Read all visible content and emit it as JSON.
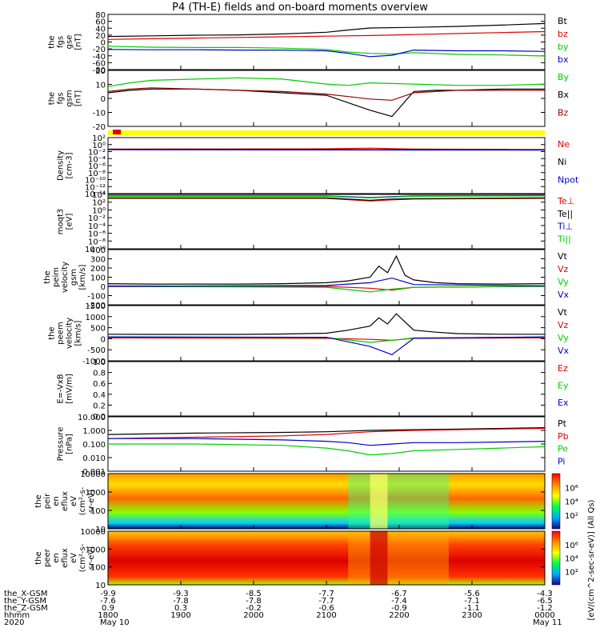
{
  "chart_data": {
    "title": "P4 (TH-E) fields and on-board moments overview",
    "type": "multi-panel time series",
    "x_axis": {
      "label": "hhmm",
      "year": "2020",
      "tick_labels_hhmm": [
        "1800",
        "1900",
        "2000",
        "2100",
        "2200",
        "2300",
        "0000"
      ],
      "date_labels": [
        "May 10",
        "May 11"
      ],
      "position_rows": [
        {
          "label": "the_X-GSM",
          "values": [
            "-9.9",
            "-9.3",
            "-8.5",
            "-7.7",
            "-6.7",
            "-5.6",
            "-4.3"
          ]
        },
        {
          "label": "the_Y-GSM",
          "values": [
            "-7.6",
            "-7.8",
            "-7.8",
            "-7.7",
            "-7.4",
            "-7.1",
            "-6.5"
          ]
        },
        {
          "label": "the_Z-GSM",
          "values": [
            "0.9",
            "0.3",
            "-0.2",
            "-0.6",
            "-0.9",
            "-1.1",
            "-1.2"
          ]
        }
      ]
    },
    "panels": [
      {
        "id": "fgs-gse",
        "ylabel_lines": [
          "the",
          "fgs",
          "gse",
          "[nT]"
        ],
        "yticks": [
          "80",
          "60",
          "40",
          "20",
          "0",
          "-20",
          "-40",
          "-60",
          "-80"
        ],
        "ylim": [
          -80,
          90
        ],
        "series": [
          {
            "name": "Bt",
            "color": "#000000",
            "x": [
              0,
              0.1,
              0.2,
              0.3,
              0.4,
              0.5,
              0.55,
              0.6,
              0.7,
              0.8,
              0.9,
              1.0
            ],
            "y": [
              22,
              24,
              26,
              27,
              30,
              35,
              42,
              48,
              50,
              53,
              57,
              62
            ]
          },
          {
            "name": "bz",
            "color": "#e00000",
            "x": [
              0,
              0.1,
              0.2,
              0.3,
              0.4,
              0.5,
              0.6,
              0.7,
              0.8,
              0.9,
              1.0
            ],
            "y": [
              13,
              15,
              17,
              19,
              21,
              23,
              25,
              28,
              31,
              34,
              37
            ]
          },
          {
            "name": "by",
            "color": "#00cc00",
            "x": [
              0,
              0.1,
              0.2,
              0.3,
              0.4,
              0.5,
              0.55,
              0.6,
              0.65,
              0.7,
              0.8,
              0.9,
              1.0
            ],
            "y": [
              -8,
              -11,
              -12,
              -12,
              -14,
              -18,
              -26,
              -30,
              -32,
              -28,
              -33,
              -35,
              -38
            ]
          },
          {
            "name": "bx",
            "color": "#0000cc",
            "x": [
              0,
              0.1,
              0.2,
              0.3,
              0.4,
              0.5,
              0.55,
              0.6,
              0.65,
              0.7,
              0.8,
              0.9,
              1.0
            ],
            "y": [
              -18,
              -19,
              -19,
              -20,
              -20,
              -22,
              -30,
              -40,
              -36,
              -20,
              -22,
              -22,
              -24
            ]
          }
        ]
      },
      {
        "id": "fgs-gsm",
        "ylabel_lines": [
          "the",
          "fgs",
          "gsm",
          "[nT]"
        ],
        "yticks": [
          "20",
          "10",
          "0",
          "-10",
          "-20"
        ],
        "ylim": [
          -25,
          20
        ],
        "series": [
          {
            "name": "By",
            "color": "#00cc00",
            "x": [
              0,
              0.05,
              0.1,
              0.2,
              0.3,
              0.4,
              0.5,
              0.55,
              0.6,
              0.7,
              0.8,
              0.9,
              1.0
            ],
            "y": [
              7,
              10,
              12,
              13,
              14,
              13,
              9,
              8,
              10,
              9,
              8,
              8,
              9
            ]
          },
          {
            "name": "Bx",
            "color": "#000000",
            "x": [
              0,
              0.05,
              0.1,
              0.2,
              0.3,
              0.4,
              0.5,
              0.55,
              0.6,
              0.65,
              0.7,
              0.75,
              0.8,
              0.9,
              1.0
            ],
            "y": [
              2,
              4,
              5,
              5,
              4,
              2,
              0,
              -6,
              -12,
              -17,
              3,
              4,
              4,
              5,
              5
            ]
          },
          {
            "name": "Bz",
            "color": "#990000",
            "x": [
              0,
              0.05,
              0.1,
              0.2,
              0.3,
              0.4,
              0.5,
              0.55,
              0.6,
              0.65,
              0.7,
              0.75,
              0.8,
              0.9,
              1.0
            ],
            "y": [
              3,
              5,
              6,
              5,
              4,
              3,
              1,
              -1,
              -3,
              -4,
              2,
              3,
              4,
              4,
              4
            ]
          }
        ]
      },
      {
        "id": "density",
        "ylabel_lines": [
          "Density",
          "[cm-3]"
        ],
        "yticks": [
          "10²",
          "10⁰",
          "10⁻²",
          "10⁻⁴",
          "10⁻⁶",
          "10⁻⁸",
          "10⁻¹⁰",
          "10⁻¹²",
          "10⁻¹⁴"
        ],
        "scale": "log",
        "ylim_log10": [
          -14,
          3
        ],
        "series": [
          {
            "name": "Ne",
            "color": "#e00000",
            "x": [
              0,
              0.5,
              0.6,
              0.7,
              1.0
            ],
            "y_log10": [
              -0.5,
              -0.4,
              -0.2,
              -0.5,
              -0.6
            ]
          },
          {
            "name": "Ni",
            "color": "#000000",
            "x": [
              0,
              1.0
            ],
            "y_log10": [
              -0.6,
              -0.7
            ]
          },
          {
            "name": "Npot",
            "color": "#0000cc",
            "x": [
              0,
              1.0
            ],
            "y_log10": [
              -0.7,
              -0.8
            ]
          }
        ]
      },
      {
        "id": "moqt3",
        "ylabel_lines": [
          "moqt3",
          "[eV]"
        ],
        "yticks": [
          "10⁴",
          "10²",
          "10⁰",
          "10⁻²",
          "10⁻⁴",
          "10⁻⁶",
          "10⁻⁸",
          "10⁻¹⁰"
        ],
        "scale": "log",
        "ylim_log10": [
          -10,
          4
        ],
        "series": [
          {
            "name": "Te⊥",
            "color": "#e00000",
            "x": [
              0,
              0.5,
              0.6,
              0.65,
              0.7,
              1.0
            ],
            "y_log10": [
              3.0,
              3.0,
              2.3,
              2.6,
              2.8,
              3.0
            ]
          },
          {
            "name": "Te||",
            "color": "#000000",
            "x": [
              0,
              0.5,
              0.6,
              0.65,
              0.7,
              1.0
            ],
            "y_log10": [
              3.1,
              3.1,
              2.5,
              2.8,
              2.9,
              3.1
            ]
          },
          {
            "name": "Ti⊥",
            "color": "#0000cc",
            "x": [
              0,
              0.5,
              0.6,
              0.65,
              0.7,
              1.0
            ],
            "y_log10": [
              3.6,
              3.6,
              3.2,
              3.4,
              3.6,
              3.7
            ]
          },
          {
            "name": "Ti||",
            "color": "#00cc00",
            "x": [
              0,
              0.5,
              0.6,
              0.65,
              0.7,
              1.0
            ],
            "y_log10": [
              3.5,
              3.5,
              3.1,
              3.3,
              3.5,
              3.6
            ]
          }
        ]
      },
      {
        "id": "peim-velocity",
        "ylabel_lines": [
          "the",
          "peim",
          "velocity",
          "gsm",
          "[km/s]"
        ],
        "yticks": [
          "400",
          "300",
          "200",
          "100",
          "0",
          "-100",
          "-200"
        ],
        "ylim": [
          -200,
          400
        ],
        "series": [
          {
            "name": "Vt",
            "color": "#000000",
            "x": [
              0,
              0.1,
              0.2,
              0.3,
              0.4,
              0.5,
              0.55,
              0.6,
              0.62,
              0.64,
              0.66,
              0.68,
              0.7,
              0.75,
              0.8,
              0.9,
              1.0
            ],
            "y": [
              30,
              25,
              25,
              25,
              30,
              40,
              60,
              100,
              220,
              150,
              330,
              120,
              70,
              40,
              30,
              25,
              30
            ]
          },
          {
            "name": "Vz",
            "color": "#e00000",
            "x": [
              0,
              0.5,
              0.6,
              0.65,
              0.7,
              1.0
            ],
            "y": [
              5,
              0,
              -20,
              -40,
              -10,
              0
            ]
          },
          {
            "name": "Vy",
            "color": "#00cc00",
            "x": [
              0,
              0.5,
              0.6,
              0.65,
              0.7,
              1.0
            ],
            "y": [
              0,
              -10,
              -60,
              -30,
              -10,
              0
            ]
          },
          {
            "name": "Vx",
            "color": "#0000cc",
            "x": [
              0,
              0.5,
              0.6,
              0.65,
              0.7,
              1.0
            ],
            "y": [
              0,
              10,
              40,
              90,
              20,
              5
            ]
          }
        ]
      },
      {
        "id": "peem-velocity",
        "ylabel_lines": [
          "the",
          "peem",
          "velocity",
          "[km/s]"
        ],
        "yticks": [
          "1500",
          "1000",
          "500",
          "0",
          "-500",
          "-1000"
        ],
        "ylim": [
          -1200,
          1500
        ],
        "series": [
          {
            "name": "Vt",
            "color": "#000000",
            "x": [
              0,
              0.1,
              0.2,
              0.3,
              0.4,
              0.5,
              0.55,
              0.6,
              0.62,
              0.64,
              0.66,
              0.68,
              0.7,
              0.75,
              0.8,
              0.9,
              1.0
            ],
            "y": [
              100,
              90,
              90,
              90,
              110,
              150,
              300,
              500,
              900,
              600,
              1100,
              700,
              300,
              200,
              130,
              100,
              100
            ]
          },
          {
            "name": "Vz",
            "color": "#e00000",
            "x": [
              0,
              0.5,
              0.6,
              0.65,
              0.7,
              1.0
            ],
            "y": [
              -80,
              -100,
              -150,
              -200,
              -100,
              -80
            ]
          },
          {
            "name": "Vy",
            "color": "#00cc00",
            "x": [
              0,
              0.5,
              0.6,
              0.65,
              0.7,
              1.0
            ],
            "y": [
              -40,
              -60,
              -300,
              -200,
              -80,
              -40
            ]
          },
          {
            "name": "Vx",
            "color": "#0000cc",
            "x": [
              0,
              0.5,
              0.6,
              0.65,
              0.7,
              1.0
            ],
            "y": [
              -30,
              -50,
              -500,
              -900,
              -100,
              -30
            ]
          }
        ]
      },
      {
        "id": "e-field",
        "ylabel_lines": [
          "E=-VxB",
          "[mV/m]"
        ],
        "yticks": [
          "1.0",
          "0.8",
          "0.6",
          "0.4",
          "0.2",
          "0.0"
        ],
        "ylim": [
          0,
          1
        ],
        "series": [
          {
            "name": "Ez",
            "color": "#e00000",
            "x": [],
            "y": []
          },
          {
            "name": "Ey",
            "color": "#00cc00",
            "x": [],
            "y": []
          },
          {
            "name": "Ex",
            "color": "#0000cc",
            "x": [],
            "y": []
          }
        ]
      },
      {
        "id": "pressure",
        "ylabel_lines": [
          "Pressure",
          "[nPa]"
        ],
        "yticks": [
          "10.000",
          "1.000",
          "0.100",
          "0.010",
          "0.001"
        ],
        "scale": "log",
        "ylim_log10": [
          -3,
          1
        ],
        "series": [
          {
            "name": "Pt",
            "color": "#000000",
            "x": [
              0,
              0.2,
              0.4,
              0.5,
              0.6,
              0.7,
              0.8,
              1.0
            ],
            "y_log10": [
              -0.3,
              -0.2,
              -0.15,
              -0.1,
              0.0,
              0.05,
              0.1,
              0.2
            ]
          },
          {
            "name": "Pb",
            "color": "#e00000",
            "x": [
              0,
              0.2,
              0.4,
              0.5,
              0.6,
              0.7,
              0.8,
              1.0
            ],
            "y_log10": [
              -0.6,
              -0.5,
              -0.4,
              -0.3,
              -0.1,
              0.0,
              0.05,
              0.15
            ]
          },
          {
            "name": "Pe",
            "color": "#00cc00",
            "x": [
              0,
              0.2,
              0.4,
              0.5,
              0.55,
              0.6,
              0.65,
              0.7,
              0.8,
              0.9,
              1.0
            ],
            "y_log10": [
              -1.0,
              -1.0,
              -1.1,
              -1.3,
              -1.5,
              -1.8,
              -1.7,
              -1.5,
              -1.4,
              -1.3,
              -1.2
            ]
          },
          {
            "name": "Pi",
            "color": "#0000cc",
            "x": [
              0,
              0.2,
              0.4,
              0.5,
              0.55,
              0.6,
              0.65,
              0.7,
              0.8,
              0.9,
              1.0
            ],
            "y_log10": [
              -0.6,
              -0.6,
              -0.7,
              -0.8,
              -0.9,
              -1.1,
              -1.0,
              -0.9,
              -0.9,
              -0.85,
              -0.8
            ]
          }
        ]
      },
      {
        "id": "peir-en-eflux",
        "type": "heatmap",
        "ylabel_lines": [
          "the",
          "peir",
          "en",
          "eflux",
          "eV",
          "(cm²-s-",
          "sr-eV)"
        ],
        "yticks": [
          "10000",
          "1000",
          "100",
          "10"
        ],
        "colorbar_tick_labels": [
          "10⁶",
          "10⁴",
          "10²"
        ],
        "colorbar_label": "[eV/(cm^2-sec-sr-eV)] (All Qs)",
        "description": "ion energy flux: red below ~1000 eV, green/yellow above"
      },
      {
        "id": "peer-en-eflux",
        "type": "heatmap",
        "ylabel_lines": [
          "the",
          "peer",
          "en",
          "eflux",
          "eV",
          "(cm²-s-",
          "sr-eV)"
        ],
        "yticks": [
          "10000",
          "1000",
          "100",
          "10"
        ],
        "colorbar_tick_labels": [
          "10⁶",
          "10⁴",
          "10²"
        ],
        "colorbar_label": "[eV/(cm^2-sec-sr-eV)] (All Qs)",
        "description": "electron energy flux: mostly red/orange, yellow above ~3000 eV after 2200"
      }
    ]
  }
}
